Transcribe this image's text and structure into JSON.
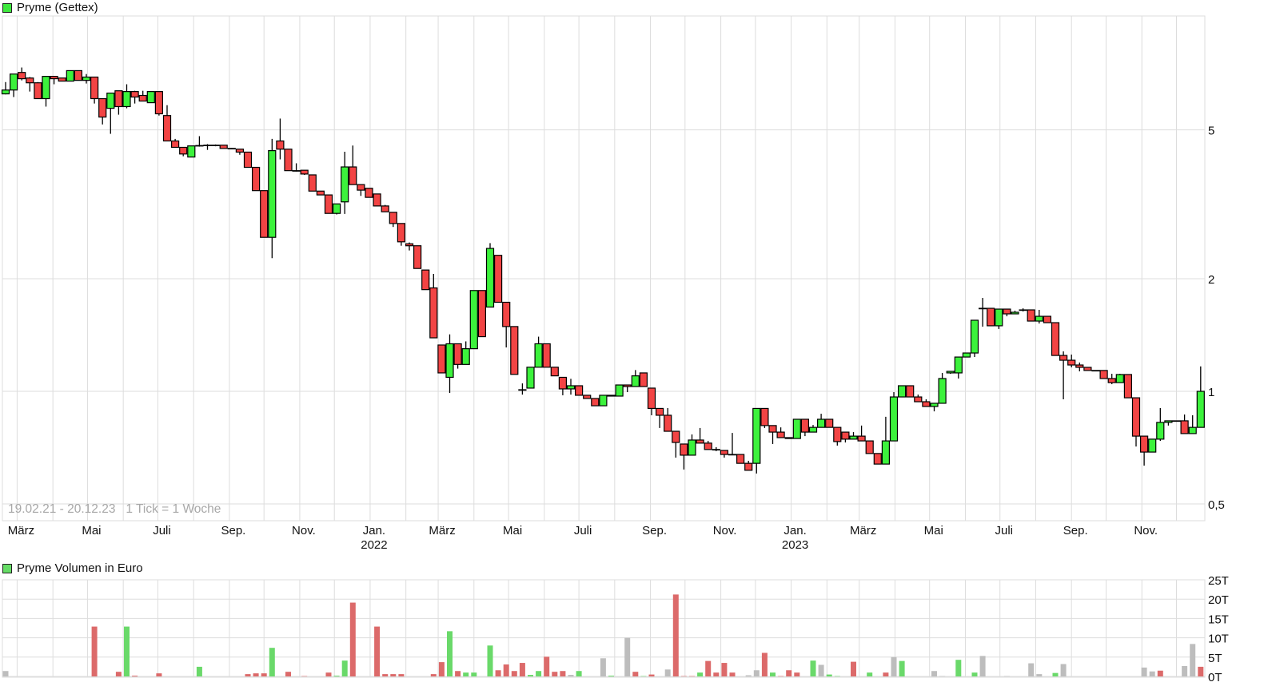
{
  "price_legend": {
    "label": "Pryme (Gettex)",
    "color": "#3ee83e"
  },
  "volume_legend": {
    "label": "Pryme Volumen in Euro",
    "color": "#66dd66"
  },
  "info": {
    "range": "19.02.21 - 20.12.23",
    "tick": "1 Tick = 1 Woche"
  },
  "colors": {
    "up": "#3cf23c",
    "down": "#f24444",
    "vol_up": "#6ad96a",
    "vol_down": "#dc6a6a",
    "vol_flat": "#bdbdbd",
    "grid": "#dddddd"
  },
  "chart_data": [
    {
      "type": "candlestick",
      "title": "Pryme (Gettex)",
      "scale": "log",
      "interval": "1 Woche",
      "start_date": "2021-02-19",
      "end_date": "2023-12-20",
      "ylim": [
        0.45,
        8.5
      ],
      "y_ticks": [
        {
          "value": 5,
          "label": "5"
        },
        {
          "value": 2,
          "label": "2"
        },
        {
          "value": 1,
          "label": "1"
        },
        {
          "value": 0.5,
          "label": "0,5"
        }
      ],
      "x_ticks": [
        {
          "date": "2021-03-01",
          "label": "März",
          "year": ""
        },
        {
          "date": "2021-05-01",
          "label": "Mai",
          "year": ""
        },
        {
          "date": "2021-07-01",
          "label": "Juli",
          "year": ""
        },
        {
          "date": "2021-09-01",
          "label": "Sep.",
          "year": ""
        },
        {
          "date": "2021-11-01",
          "label": "Nov.",
          "year": ""
        },
        {
          "date": "2022-01-01",
          "label": "Jan.",
          "year": "2022"
        },
        {
          "date": "2022-03-01",
          "label": "März",
          "year": ""
        },
        {
          "date": "2022-05-01",
          "label": "Mai",
          "year": ""
        },
        {
          "date": "2022-07-01",
          "label": "Juli",
          "year": ""
        },
        {
          "date": "2022-09-01",
          "label": "Sep.",
          "year": ""
        },
        {
          "date": "2022-11-01",
          "label": "Nov.",
          "year": ""
        },
        {
          "date": "2023-01-01",
          "label": "Jan.",
          "year": "2023"
        },
        {
          "date": "2023-03-01",
          "label": "März",
          "year": ""
        },
        {
          "date": "2023-05-01",
          "label": "Mai",
          "year": ""
        },
        {
          "date": "2023-07-01",
          "label": "Juli",
          "year": ""
        },
        {
          "date": "2023-09-01",
          "label": "Sep.",
          "year": ""
        },
        {
          "date": "2023-11-01",
          "label": "Nov.",
          "year": ""
        }
      ],
      "grid": true,
      "ohlc": [
        [
          6.24,
          6.71,
          6.22,
          6.39
        ],
        [
          6.39,
          7.05,
          6.12,
          7.05
        ],
        [
          7.12,
          7.34,
          6.78,
          6.85
        ],
        [
          6.88,
          6.92,
          6.33,
          6.68
        ],
        [
          6.68,
          6.71,
          6.06,
          6.06
        ],
        [
          6.06,
          6.95,
          5.77,
          6.95
        ],
        [
          6.95,
          6.95,
          6.62,
          6.85
        ],
        [
          6.88,
          6.88,
          6.75,
          6.75
        ],
        [
          6.75,
          7.2,
          6.75,
          7.2
        ],
        [
          7.2,
          7.2,
          6.78,
          6.78
        ],
        [
          6.78,
          7.05,
          6.65,
          6.92
        ],
        [
          6.92,
          6.92,
          5.88,
          6.06
        ],
        [
          6.06,
          6.06,
          5.17,
          5.41
        ],
        [
          5.71,
          6.27,
          4.88,
          6.27
        ],
        [
          6.36,
          6.36,
          5.49,
          5.77
        ],
        [
          5.77,
          6.62,
          5.71,
          6.33
        ],
        [
          6.33,
          6.36,
          5.88,
          6.12
        ],
        [
          6.18,
          6.36,
          5.97,
          5.97
        ],
        [
          5.91,
          6.33,
          5.91,
          6.33
        ],
        [
          6.33,
          6.33,
          5.46,
          5.52
        ],
        [
          5.46,
          5.82,
          4.67,
          4.67
        ],
        [
          4.67,
          4.73,
          4.49,
          4.49
        ],
        [
          4.49,
          4.49,
          4.25,
          4.31
        ],
        [
          4.23,
          4.53,
          4.23,
          4.53
        ],
        [
          4.53,
          4.81,
          4.51,
          4.54
        ],
        [
          4.55,
          4.58,
          4.42,
          4.55
        ],
        [
          4.55,
          4.57,
          4.52,
          4.55
        ],
        [
          4.55,
          4.55,
          4.46,
          4.46
        ],
        [
          4.46,
          4.47,
          4.45,
          4.46
        ],
        [
          4.44,
          4.44,
          4.29,
          4.36
        ],
        [
          4.36,
          4.36,
          3.97,
          3.97
        ],
        [
          3.97,
          3.97,
          3.44,
          3.44
        ],
        [
          3.44,
          3.44,
          2.58,
          2.58
        ],
        [
          2.58,
          4.73,
          2.27,
          4.4
        ],
        [
          4.67,
          5.36,
          4.17,
          4.44
        ],
        [
          4.44,
          4.44,
          3.89,
          3.89
        ],
        [
          3.89,
          4.07,
          3.87,
          3.89
        ],
        [
          3.9,
          3.9,
          3.79,
          3.81
        ],
        [
          3.79,
          3.79,
          3.43,
          3.43
        ],
        [
          3.43,
          3.43,
          3.35,
          3.35
        ],
        [
          3.35,
          3.35,
          2.99,
          2.99
        ],
        [
          2.99,
          3.17,
          2.97,
          3.17
        ],
        [
          3.21,
          4.37,
          2.98,
          3.98
        ],
        [
          3.98,
          4.54,
          3.57,
          3.57
        ],
        [
          3.57,
          3.57,
          3.33,
          3.45
        ],
        [
          3.49,
          3.49,
          3.3,
          3.3
        ],
        [
          3.37,
          3.37,
          3.13,
          3.13
        ],
        [
          3.13,
          3.15,
          3.02,
          3.02
        ],
        [
          3.01,
          3.01,
          2.75,
          2.81
        ],
        [
          2.81,
          2.81,
          2.45,
          2.51
        ],
        [
          2.48,
          2.5,
          2.38,
          2.45
        ],
        [
          2.45,
          2.45,
          2.13,
          2.13
        ],
        [
          2.11,
          2.11,
          1.87,
          1.87
        ],
        [
          1.89,
          2.06,
          1.39,
          1.39
        ],
        [
          1.33,
          1.33,
          1.12,
          1.12
        ],
        [
          1.09,
          1.42,
          0.99,
          1.34
        ],
        [
          1.34,
          1.34,
          1.15,
          1.18
        ],
        [
          1.18,
          1.36,
          1.18,
          1.3
        ],
        [
          1.3,
          1.86,
          1.3,
          1.86
        ],
        [
          1.86,
          1.86,
          1.4,
          1.4
        ],
        [
          1.68,
          2.49,
          1.68,
          2.41
        ],
        [
          2.31,
          2.31,
          1.73,
          1.73
        ],
        [
          1.73,
          1.73,
          1.31,
          1.49
        ],
        [
          1.49,
          1.49,
          1.11,
          1.11
        ],
        [
          1.01,
          1.05,
          0.98,
          1.01
        ],
        [
          1.02,
          1.16,
          1.02,
          1.16
        ],
        [
          1.16,
          1.4,
          1.16,
          1.34
        ],
        [
          1.34,
          1.34,
          1.16,
          1.16
        ],
        [
          1.16,
          1.16,
          1.1,
          1.1
        ],
        [
          1.09,
          1.09,
          0.976,
          1.015
        ],
        [
          1.015,
          1.08,
          0.98,
          1.035
        ],
        [
          1.035,
          1.035,
          0.976,
          0.976
        ],
        [
          0.976,
          0.976,
          0.957,
          0.957
        ],
        [
          0.957,
          0.957,
          0.915,
          0.915
        ],
        [
          0.915,
          0.976,
          0.915,
          0.976
        ],
        [
          0.976,
          0.976,
          0.971,
          0.971
        ],
        [
          0.971,
          1.04,
          0.971,
          1.04
        ],
        [
          1.04,
          1.04,
          0.995,
          1.03
        ],
        [
          1.03,
          1.14,
          1.03,
          1.1
        ],
        [
          1.12,
          1.12,
          1.03,
          1.03
        ],
        [
          1.02,
          1.02,
          0.863,
          0.9
        ],
        [
          0.9,
          0.9,
          0.798,
          0.863
        ],
        [
          0.863,
          0.902,
          0.782,
          0.782
        ],
        [
          0.782,
          0.782,
          0.665,
          0.73
        ],
        [
          0.723,
          0.723,
          0.618,
          0.675
        ],
        [
          0.675,
          0.767,
          0.675,
          0.741
        ],
        [
          0.741,
          0.798,
          0.727,
          0.727
        ],
        [
          0.727,
          0.737,
          0.699,
          0.699
        ],
        [
          0.699,
          0.709,
          0.692,
          0.699
        ],
        [
          0.695,
          0.695,
          0.665,
          0.678
        ],
        [
          0.678,
          0.774,
          0.678,
          0.678
        ],
        [
          0.678,
          0.678,
          0.642,
          0.642
        ],
        [
          0.642,
          0.652,
          0.615,
          0.615
        ],
        [
          0.642,
          0.9,
          0.603,
          0.9
        ],
        [
          0.9,
          0.9,
          0.798,
          0.81
        ],
        [
          0.81,
          0.81,
          0.723,
          0.778
        ],
        [
          0.778,
          0.801,
          0.752,
          0.752
        ],
        [
          0.752,
          0.752,
          0.748,
          0.748
        ],
        [
          0.748,
          0.842,
          0.748,
          0.842
        ],
        [
          0.842,
          0.842,
          0.759,
          0.778
        ],
        [
          0.778,
          0.813,
          0.778,
          0.801
        ],
        [
          0.801,
          0.871,
          0.801,
          0.842
        ],
        [
          0.842,
          0.842,
          0.801,
          0.801
        ],
        [
          0.801,
          0.801,
          0.716,
          0.734
        ],
        [
          0.778,
          0.778,
          0.73,
          0.745
        ],
        [
          0.745,
          0.778,
          0.745,
          0.759
        ],
        [
          0.759,
          0.81,
          0.737,
          0.737
        ],
        [
          0.737,
          0.737,
          0.682,
          0.682
        ],
        [
          0.682,
          0.682,
          0.639,
          0.639
        ],
        [
          0.639,
          0.855,
          0.639,
          0.737
        ],
        [
          0.737,
          0.995,
          0.737,
          0.966
        ],
        [
          0.966,
          1.035,
          0.966,
          1.035
        ],
        [
          1.035,
          1.035,
          0.966,
          0.966
        ],
        [
          0.966,
          0.98,
          0.938,
          0.938
        ],
        [
          0.938,
          0.952,
          0.911,
          0.911
        ],
        [
          0.911,
          0.929,
          0.884,
          0.929
        ],
        [
          0.929,
          1.12,
          0.929,
          1.082
        ],
        [
          1.12,
          1.131,
          1.114,
          1.131
        ],
        [
          1.12,
          1.235,
          1.082,
          1.235
        ],
        [
          1.235,
          1.266,
          1.235,
          1.266
        ],
        [
          1.266,
          1.549,
          1.235,
          1.549
        ],
        [
          1.667,
          1.777,
          1.489,
          1.667
        ],
        [
          1.667,
          1.667,
          1.497,
          1.497
        ],
        [
          1.497,
          1.659,
          1.468,
          1.659
        ],
        [
          1.659,
          1.659,
          1.587,
          1.611
        ],
        [
          1.611,
          1.643,
          1.611,
          1.627
        ],
        [
          1.651,
          1.667,
          1.635,
          1.651
        ],
        [
          1.651,
          1.651,
          1.541,
          1.541
        ],
        [
          1.541,
          1.651,
          1.518,
          1.587
        ],
        [
          1.587,
          1.587,
          1.526,
          1.526
        ],
        [
          1.526,
          1.526,
          1.247,
          1.247
        ],
        [
          1.247,
          1.279,
          0.952,
          1.211
        ],
        [
          1.211,
          1.254,
          1.159,
          1.176
        ],
        [
          1.176,
          1.194,
          1.131,
          1.159
        ],
        [
          1.159,
          1.159,
          1.137,
          1.137
        ],
        [
          1.137,
          1.137,
          1.137,
          1.137
        ],
        [
          1.137,
          1.137,
          1.082,
          1.082
        ],
        [
          1.082,
          1.114,
          1.045,
          1.055
        ],
        [
          1.055,
          1.114,
          1.055,
          1.109
        ],
        [
          1.109,
          1.109,
          0.961,
          0.961
        ],
        [
          0.961,
          0.961,
          0.712,
          0.759
        ],
        [
          0.759,
          0.759,
          0.633,
          0.688
        ],
        [
          0.688,
          0.745,
          0.688,
          0.745
        ],
        [
          0.745,
          0.902,
          0.737,
          0.826
        ],
        [
          0.826,
          0.834,
          0.81,
          0.834
        ],
        [
          0.834,
          0.834,
          0.834,
          0.834
        ],
        [
          0.834,
          0.867,
          0.771,
          0.771
        ],
        [
          0.771,
          0.863,
          0.771,
          0.801
        ],
        [
          0.801,
          1.166,
          0.801,
          1.0
        ]
      ]
    },
    {
      "type": "bar",
      "title": "Pryme Volumen in Euro",
      "unit": "T",
      "ylim": [
        0,
        25
      ],
      "y_ticks": [
        {
          "value": 25,
          "label": "25T"
        },
        {
          "value": 20,
          "label": "20T"
        },
        {
          "value": 15,
          "label": "15T"
        },
        {
          "value": 10,
          "label": "10T"
        },
        {
          "value": 5,
          "label": "5T"
        },
        {
          "value": 0,
          "label": "0T"
        }
      ],
      "grid": true,
      "values": [
        1.4,
        0,
        0,
        0,
        0,
        0,
        0,
        0,
        0,
        0,
        0,
        12.9,
        0,
        0,
        1.2,
        12.9,
        0.2,
        0,
        0,
        0.8,
        0,
        0,
        0,
        0,
        2.5,
        0,
        0,
        0,
        0,
        0,
        0.6,
        0.8,
        0.8,
        7.4,
        0,
        1.2,
        0,
        0.1,
        0,
        0,
        1.0,
        0.2,
        4.1,
        19.1,
        0,
        0,
        12.9,
        0.6,
        0.6,
        0.6,
        0,
        0,
        0,
        0.6,
        3.7,
        11.7,
        1.4,
        1.0,
        1.0,
        0,
        8.0,
        1.6,
        3.1,
        1.4,
        3.5,
        0.4,
        1.4,
        5.1,
        1.2,
        1.4,
        0.4,
        1.4,
        0,
        0,
        4.7,
        0.2,
        0,
        10.0,
        1.2,
        0.1,
        0.5,
        0,
        1.8,
        21.2,
        0.1,
        0.1,
        1.0,
        4.0,
        1.0,
        3.5,
        1.0,
        0,
        0.3,
        1.6,
        6.1,
        1.0,
        0.1,
        1.6,
        1.0,
        0,
        4.1,
        3.0,
        0.5,
        0.1,
        0,
        3.8,
        0,
        1.0,
        0,
        1.0,
        5.0,
        4.0,
        0,
        0,
        0,
        1.4,
        0.1,
        0,
        4.3,
        0,
        1.0,
        5.3,
        0,
        0,
        0.1,
        0,
        0,
        3.4,
        0.6,
        0,
        0.9,
        3.2,
        0,
        0,
        0,
        0,
        0,
        0,
        0,
        0,
        0,
        2.3,
        1.3,
        1.5,
        0,
        0,
        2.7,
        8.4,
        2.5
      ],
      "trend": "n..........d..dud..d....u.....dddu.d.d..duud..dddd...dduduu.udddduuddd.ud..uu.dudd.dddudddd.n.duddddu.uudd.u.d.uuu...uu.u.uu..d..du.dd.........duu..duu"
    }
  ]
}
